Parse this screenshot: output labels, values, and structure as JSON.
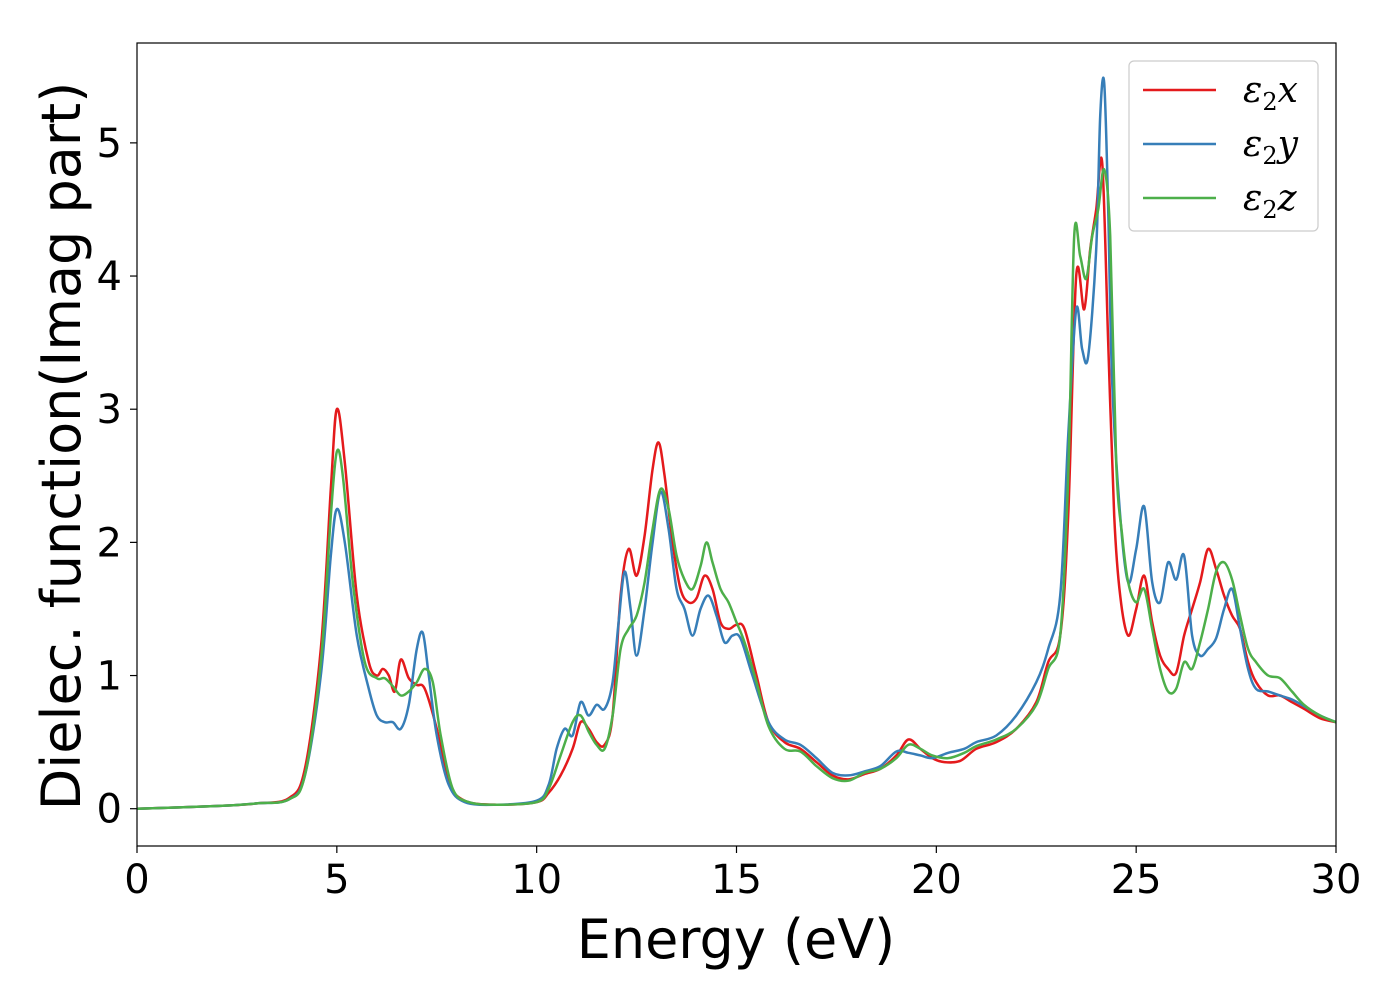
{
  "chart_data": {
    "type": "line",
    "xlabel": "Energy (eV)",
    "ylabel": "Dielec. function(Imag part)",
    "xlim": [
      0,
      30
    ],
    "ylim": [
      -0.28,
      5.75
    ],
    "xticks": [
      0,
      5,
      10,
      15,
      20,
      25,
      30
    ],
    "yticks": [
      0,
      1,
      2,
      3,
      4,
      5
    ],
    "grid": false,
    "legend_position": "top-right",
    "series": [
      {
        "name": "ε2x",
        "legend": {
          "base": "ε",
          "sub": "2",
          "tail": "x"
        },
        "color": "#e41a1c",
        "x": [
          0,
          2,
          3,
          3.8,
          4.2,
          4.6,
          4.85,
          5.0,
          5.2,
          5.5,
          5.8,
          6.0,
          6.15,
          6.3,
          6.45,
          6.6,
          6.8,
          7.0,
          7.2,
          7.5,
          7.8,
          8.2,
          9,
          10.0,
          10.3,
          10.6,
          10.9,
          11.1,
          11.3,
          11.5,
          11.7,
          11.9,
          12.1,
          12.3,
          12.5,
          12.7,
          12.9,
          13.05,
          13.2,
          13.4,
          13.6,
          13.8,
          14.0,
          14.2,
          14.4,
          14.6,
          14.8,
          15.0,
          15.2,
          15.5,
          15.8,
          16.2,
          16.6,
          17.0,
          17.4,
          17.8,
          18.2,
          18.6,
          19.0,
          19.3,
          19.6,
          19.9,
          20.2,
          20.6,
          21.0,
          21.5,
          22.0,
          22.5,
          22.8,
          23.1,
          23.3,
          23.5,
          23.7,
          23.85,
          24.0,
          24.15,
          24.3,
          24.45,
          24.6,
          24.8,
          25.0,
          25.2,
          25.4,
          25.6,
          25.8,
          26.0,
          26.2,
          26.4,
          26.6,
          26.8,
          27.0,
          27.2,
          27.4,
          27.6,
          27.8,
          28.0,
          28.3,
          28.6,
          28.9,
          29.2,
          29.6,
          30.0
        ],
        "y": [
          0.0,
          0.02,
          0.04,
          0.08,
          0.3,
          1.2,
          2.4,
          3.0,
          2.6,
          1.6,
          1.1,
          1.0,
          1.05,
          1.0,
          0.88,
          1.12,
          0.98,
          0.93,
          0.9,
          0.6,
          0.2,
          0.06,
          0.03,
          0.05,
          0.12,
          0.25,
          0.45,
          0.65,
          0.6,
          0.5,
          0.48,
          0.7,
          1.6,
          1.95,
          1.75,
          2.05,
          2.55,
          2.75,
          2.5,
          2.0,
          1.65,
          1.55,
          1.58,
          1.75,
          1.65,
          1.4,
          1.35,
          1.38,
          1.35,
          1.0,
          0.65,
          0.5,
          0.45,
          0.35,
          0.25,
          0.22,
          0.26,
          0.3,
          0.4,
          0.52,
          0.45,
          0.38,
          0.35,
          0.36,
          0.45,
          0.5,
          0.6,
          0.8,
          1.1,
          1.3,
          2.2,
          4.0,
          3.75,
          4.2,
          4.5,
          4.85,
          3.5,
          2.2,
          1.6,
          1.3,
          1.5,
          1.75,
          1.4,
          1.15,
          1.05,
          1.02,
          1.3,
          1.5,
          1.7,
          1.95,
          1.8,
          1.6,
          1.45,
          1.35,
          1.1,
          0.95,
          0.85,
          0.85,
          0.8,
          0.75,
          0.68,
          0.65
        ]
      },
      {
        "name": "ε2y",
        "legend": {
          "base": "ε",
          "sub": "2",
          "tail": "y"
        },
        "color": "#377eb8",
        "x": [
          0,
          2,
          3,
          3.8,
          4.2,
          4.6,
          4.85,
          5.0,
          5.2,
          5.5,
          5.8,
          6.0,
          6.2,
          6.4,
          6.6,
          6.8,
          7.0,
          7.15,
          7.3,
          7.5,
          7.8,
          8.2,
          9,
          10.0,
          10.3,
          10.5,
          10.7,
          10.9,
          11.1,
          11.3,
          11.5,
          11.7,
          11.9,
          12.05,
          12.2,
          12.35,
          12.5,
          12.7,
          12.9,
          13.1,
          13.3,
          13.5,
          13.7,
          13.9,
          14.1,
          14.3,
          14.5,
          14.7,
          14.9,
          15.1,
          15.4,
          15.8,
          16.2,
          16.6,
          17.0,
          17.4,
          17.8,
          18.2,
          18.6,
          19.0,
          19.3,
          19.6,
          19.9,
          20.3,
          20.7,
          21.0,
          21.5,
          22.0,
          22.5,
          22.8,
          23.1,
          23.3,
          23.5,
          23.65,
          23.8,
          24.0,
          24.1,
          24.2,
          24.3,
          24.4,
          24.6,
          24.8,
          25.0,
          25.2,
          25.4,
          25.6,
          25.8,
          26.0,
          26.2,
          26.4,
          26.6,
          26.8,
          27.0,
          27.2,
          27.4,
          27.6,
          27.8,
          28.0,
          28.3,
          28.6,
          28.9,
          29.2,
          29.6,
          30.0
        ],
        "y": [
          0.0,
          0.02,
          0.04,
          0.07,
          0.25,
          1.0,
          1.9,
          2.25,
          2.0,
          1.3,
          0.9,
          0.7,
          0.65,
          0.65,
          0.6,
          0.78,
          1.2,
          1.32,
          1.0,
          0.55,
          0.18,
          0.05,
          0.03,
          0.06,
          0.18,
          0.45,
          0.6,
          0.55,
          0.8,
          0.7,
          0.78,
          0.75,
          0.95,
          1.4,
          1.78,
          1.5,
          1.15,
          1.5,
          2.0,
          2.38,
          2.1,
          1.65,
          1.5,
          1.3,
          1.5,
          1.6,
          1.45,
          1.25,
          1.3,
          1.28,
          1.0,
          0.65,
          0.52,
          0.48,
          0.38,
          0.27,
          0.25,
          0.28,
          0.32,
          0.43,
          0.42,
          0.4,
          0.38,
          0.42,
          0.45,
          0.5,
          0.55,
          0.7,
          0.95,
          1.2,
          1.6,
          2.8,
          3.75,
          3.45,
          3.4,
          4.2,
          5.2,
          5.45,
          4.5,
          3.2,
          2.2,
          1.7,
          1.95,
          2.27,
          1.7,
          1.55,
          1.85,
          1.72,
          1.9,
          1.3,
          1.15,
          1.2,
          1.28,
          1.5,
          1.65,
          1.35,
          1.05,
          0.9,
          0.88,
          0.85,
          0.82,
          0.77,
          0.7,
          0.65
        ]
      },
      {
        "name": "ε2z",
        "legend": {
          "base": "ε",
          "sub": "2",
          "tail": "z"
        },
        "color": "#4daf4a",
        "x": [
          0,
          2,
          3,
          3.8,
          4.2,
          4.6,
          4.85,
          5.0,
          5.15,
          5.4,
          5.7,
          6.0,
          6.2,
          6.4,
          6.6,
          6.8,
          7.0,
          7.2,
          7.4,
          7.6,
          7.9,
          8.3,
          9,
          10.0,
          10.3,
          10.6,
          10.9,
          11.1,
          11.3,
          11.5,
          11.7,
          11.9,
          12.1,
          12.3,
          12.5,
          12.7,
          12.9,
          13.1,
          13.3,
          13.5,
          13.7,
          13.9,
          14.1,
          14.25,
          14.4,
          14.6,
          14.8,
          15.0,
          15.2,
          15.5,
          15.8,
          16.2,
          16.6,
          17.0,
          17.4,
          17.8,
          18.2,
          18.6,
          19.0,
          19.3,
          19.6,
          19.9,
          20.3,
          20.7,
          21.0,
          21.5,
          22.0,
          22.5,
          22.8,
          23.1,
          23.3,
          23.45,
          23.6,
          23.75,
          23.9,
          24.05,
          24.2,
          24.35,
          24.5,
          24.65,
          24.8,
          25.0,
          25.2,
          25.4,
          25.6,
          25.8,
          26.0,
          26.2,
          26.4,
          26.6,
          26.8,
          27.0,
          27.2,
          27.4,
          27.6,
          27.8,
          28.0,
          28.3,
          28.6,
          28.9,
          29.2,
          29.6,
          30.0
        ],
        "y": [
          0.0,
          0.02,
          0.04,
          0.07,
          0.25,
          1.1,
          2.2,
          2.68,
          2.5,
          1.7,
          1.1,
          0.98,
          0.98,
          0.92,
          0.85,
          0.88,
          0.95,
          1.05,
          0.95,
          0.55,
          0.15,
          0.05,
          0.03,
          0.05,
          0.15,
          0.4,
          0.65,
          0.7,
          0.58,
          0.48,
          0.45,
          0.7,
          1.2,
          1.35,
          1.45,
          1.7,
          2.1,
          2.4,
          2.25,
          1.9,
          1.72,
          1.65,
          1.82,
          2.0,
          1.85,
          1.65,
          1.55,
          1.4,
          1.25,
          0.95,
          0.62,
          0.45,
          0.43,
          0.32,
          0.23,
          0.21,
          0.27,
          0.3,
          0.38,
          0.48,
          0.45,
          0.4,
          0.38,
          0.42,
          0.47,
          0.52,
          0.6,
          0.78,
          1.05,
          1.3,
          2.5,
          4.3,
          4.15,
          3.98,
          4.3,
          4.5,
          4.8,
          4.3,
          2.6,
          2.05,
          1.7,
          1.55,
          1.65,
          1.35,
          1.05,
          0.88,
          0.9,
          1.1,
          1.05,
          1.25,
          1.5,
          1.78,
          1.85,
          1.72,
          1.45,
          1.2,
          1.1,
          1.0,
          0.98,
          0.88,
          0.78,
          0.7,
          0.65
        ]
      }
    ]
  }
}
